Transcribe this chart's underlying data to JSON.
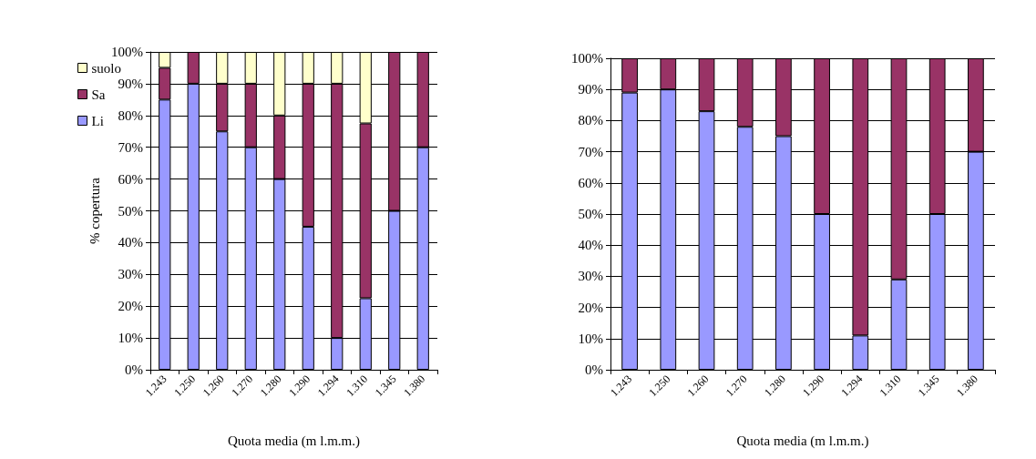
{
  "chart_data": [
    {
      "type": "bar",
      "stacked": true,
      "xlabel": "Quota media (m l.m.m.)",
      "ylabel": "% copertura",
      "categories": [
        "1.243",
        "1.250",
        "1.260",
        "1.270",
        "1.280",
        "1.290",
        "1.294",
        "1.310",
        "1.345",
        "1.380"
      ],
      "series": [
        {
          "name": "Li",
          "color": "#9999ff",
          "values": [
            85,
            90,
            75,
            70,
            60,
            45,
            10,
            22.5,
            50,
            70
          ]
        },
        {
          "name": "Sa",
          "color": "#993366",
          "values": [
            10,
            10,
            15,
            20,
            20,
            45,
            80,
            55,
            50,
            30
          ]
        },
        {
          "name": "suolo",
          "color": "#ffffcc",
          "values": [
            5,
            0,
            10,
            10,
            20,
            10,
            10,
            22.5,
            0,
            0
          ]
        }
      ],
      "ylim": [
        0,
        100
      ],
      "yticks": [
        {
          "value": 0,
          "label": "0%"
        },
        {
          "value": 10,
          "label": "10%"
        },
        {
          "value": 20,
          "label": "20%"
        },
        {
          "value": 30,
          "label": "30%"
        },
        {
          "value": 40,
          "label": "40%"
        },
        {
          "value": 50,
          "label": "50%"
        },
        {
          "value": 60,
          "label": "60%"
        },
        {
          "value": 70,
          "label": "70%"
        },
        {
          "value": 80,
          "label": "80%"
        },
        {
          "value": 90,
          "label": "90%"
        },
        {
          "value": 100,
          "label": "100%"
        }
      ],
      "grid": "y",
      "legend": "left"
    },
    {
      "type": "bar",
      "stacked": true,
      "xlabel": "Quota media (m l.m.m.)",
      "categories": [
        "1.243",
        "1.250",
        "1.260",
        "1.270",
        "1.280",
        "1.290",
        "1.294",
        "1.310",
        "1.345",
        "1.380"
      ],
      "series": [
        {
          "color": "#9999ff",
          "values": [
            89,
            90,
            83,
            78,
            75,
            50,
            11,
            29,
            50,
            70
          ]
        },
        {
          "color": "#993366",
          "values": [
            11,
            10,
            17,
            22,
            25,
            50,
            89,
            71,
            50,
            30
          ]
        }
      ],
      "ylim": [
        0,
        100
      ],
      "yticks": [
        {
          "value": 0,
          "label": "0%"
        },
        {
          "value": 10,
          "label": "10%"
        },
        {
          "value": 20,
          "label": "20%"
        },
        {
          "value": 30,
          "label": "30%"
        },
        {
          "value": 40,
          "label": "40%"
        },
        {
          "value": 50,
          "label": "50%"
        },
        {
          "value": 60,
          "label": "60%"
        },
        {
          "value": 70,
          "label": "70%"
        },
        {
          "value": 80,
          "label": "80%"
        },
        {
          "value": 90,
          "label": "90%"
        },
        {
          "value": 100,
          "label": "100%"
        }
      ],
      "grid": "y"
    }
  ]
}
